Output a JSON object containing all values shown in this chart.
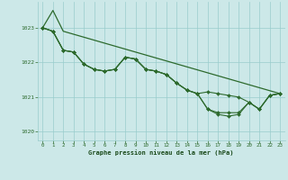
{
  "bg_color": "#cce8e8",
  "grid_color": "#99cccc",
  "line_color": "#2d6a2d",
  "xlabel": "Graphe pression niveau de la mer (hPa)",
  "xlabel_color": "#1a4a1a",
  "tick_color": "#2d6a2d",
  "ylim": [
    1019.75,
    1023.75
  ],
  "xlim": [
    -0.5,
    23.5
  ],
  "yticks": [
    1020,
    1021,
    1022,
    1023
  ],
  "xticks": [
    0,
    1,
    2,
    3,
    4,
    5,
    6,
    7,
    8,
    9,
    10,
    11,
    12,
    13,
    14,
    15,
    16,
    17,
    18,
    19,
    20,
    21,
    22,
    23
  ],
  "series": [
    [
      1023.0,
      1023.5,
      1022.9,
      null,
      null,
      null,
      null,
      null,
      null,
      null,
      null,
      null,
      null,
      null,
      null,
      null,
      null,
      null,
      null,
      null,
      null,
      null,
      null,
      1021.1
    ],
    [
      1023.0,
      1022.9,
      1022.35,
      1022.3,
      1021.95,
      1021.75,
      1021.7,
      1021.75,
      1022.15,
      1022.1,
      1021.75,
      1021.65,
      1021.6,
      1021.3,
      1021.15,
      1021.05,
      1021.15,
      1021.1,
      1021.05,
      1021.0,
      1020.85,
      1020.65,
      1021.05,
      1021.1
    ],
    [
      1023.0,
      1022.9,
      1022.35,
      1022.3,
      1021.95,
      1021.75,
      1021.7,
      1021.75,
      1022.15,
      1022.1,
      1021.75,
      1021.65,
      1021.6,
      1021.3,
      1021.15,
      1021.05,
      1020.65,
      1020.6,
      1020.65,
      1020.65,
      1020.85,
      1020.65,
      1021.05,
      1021.1
    ],
    [
      1023.0,
      1022.9,
      1022.35,
      1022.3,
      1021.95,
      1021.75,
      1021.7,
      1021.75,
      1022.15,
      1022.1,
      1021.75,
      1021.65,
      1021.6,
      1021.3,
      1021.15,
      1021.05,
      1020.65,
      1020.55,
      1020.55,
      1020.55,
      1020.85,
      1020.65,
      1021.05,
      1021.1
    ]
  ],
  "line1_x": [
    0,
    1,
    2,
    23
  ],
  "line1_y": [
    1023.0,
    1023.5,
    1022.9,
    1021.1
  ]
}
